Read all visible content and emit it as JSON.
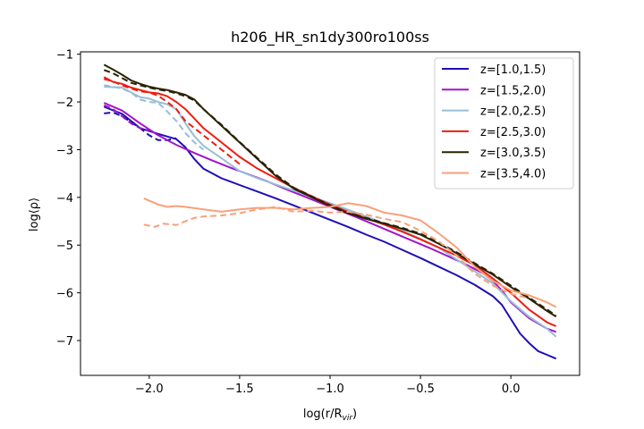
{
  "chart_data": {
    "type": "line",
    "title": "h206_HR_sn1dy300ro100ss",
    "xlabel": "log(r/R",
    "xlabel_sub": "vir",
    "xlabel_close": ")",
    "ylabel": "log⟨ρ⟩",
    "xlim": [
      -2.38,
      0.38
    ],
    "ylim": [
      -7.73,
      -0.95
    ],
    "xticks": [
      -2.0,
      -1.5,
      -1.0,
      -0.5,
      0.0
    ],
    "xtick_labels": [
      "−2.0",
      "−1.5",
      "−1.0",
      "−0.5",
      "0.0"
    ],
    "yticks": [
      -1,
      -2,
      -3,
      -4,
      -5,
      -6,
      -7
    ],
    "ytick_labels": [
      "−1",
      "−2",
      "−3",
      "−4",
      "−5",
      "−6",
      "−7"
    ],
    "grid": false,
    "legend_position": "top-right",
    "series": [
      {
        "name": "z=[1.0,1.5)",
        "color": "#1f0eb3",
        "solid": {
          "x": [
            -2.25,
            -2.15,
            -2.05,
            -1.95,
            -1.85,
            -1.8,
            -1.75,
            -1.7,
            -1.6,
            -1.5,
            -1.4,
            -1.3,
            -1.2,
            -1.1,
            -1.0,
            -0.9,
            -0.8,
            -0.7,
            -0.6,
            -0.5,
            -0.4,
            -0.3,
            -0.2,
            -0.1,
            -0.05,
            0.0,
            0.05,
            0.1,
            0.15,
            0.2,
            0.25
          ],
          "y": [
            -2.1,
            -2.25,
            -2.55,
            -2.67,
            -2.78,
            -2.95,
            -3.2,
            -3.4,
            -3.6,
            -3.74,
            -3.88,
            -4.02,
            -4.17,
            -4.32,
            -4.47,
            -4.62,
            -4.78,
            -4.93,
            -5.1,
            -5.27,
            -5.45,
            -5.63,
            -5.83,
            -6.07,
            -6.25,
            -6.55,
            -6.85,
            -7.05,
            -7.22,
            -7.3,
            -7.38
          ]
        },
        "dashed": {
          "x": [
            -2.25,
            -2.2,
            -2.15,
            -2.05,
            -2.0,
            -1.95,
            -1.9,
            -1.85
          ],
          "y": [
            -2.24,
            -2.22,
            -2.3,
            -2.55,
            -2.7,
            -2.8,
            -2.8,
            -2.76
          ]
        }
      },
      {
        "name": "z=[1.5,2.0)",
        "color": "#a312cc",
        "solid": {
          "x": [
            -2.25,
            -2.15,
            -2.05,
            -1.95,
            -1.85,
            -1.75,
            -1.65,
            -1.55,
            -1.45,
            -1.35,
            -1.25,
            -1.15,
            -1.05,
            -0.95,
            -0.85,
            -0.75,
            -0.65,
            -0.55,
            -0.45,
            -0.35,
            -0.25,
            -0.15,
            -0.1,
            -0.05,
            0.0,
            0.1,
            0.2,
            0.25
          ],
          "y": [
            -2.02,
            -2.18,
            -2.45,
            -2.7,
            -2.9,
            -3.07,
            -3.23,
            -3.38,
            -3.52,
            -3.66,
            -3.82,
            -3.97,
            -4.12,
            -4.27,
            -4.42,
            -4.58,
            -4.74,
            -4.9,
            -5.06,
            -5.23,
            -5.4,
            -5.6,
            -5.75,
            -5.95,
            -6.2,
            -6.53,
            -6.75,
            -6.82
          ]
        },
        "dashed": {
          "x": [
            -2.25,
            -2.2,
            -2.15,
            -2.1,
            -2.05,
            -2.0
          ],
          "y": [
            -2.07,
            -2.15,
            -2.3,
            -2.45,
            -2.55,
            -2.6
          ]
        }
      },
      {
        "name": "z=[2.0,2.5)",
        "color": "#97bed6",
        "solid": {
          "x": [
            -2.25,
            -2.15,
            -2.1,
            -2.05,
            -2.0,
            -1.95,
            -1.9,
            -1.85,
            -1.8,
            -1.75,
            -1.7,
            -1.6,
            -1.5,
            -1.4,
            -1.3,
            -1.2,
            -1.1,
            -1.0,
            -0.9,
            -0.8,
            -0.7,
            -0.6,
            -0.5,
            -0.4,
            -0.3,
            -0.2,
            -0.1,
            0.0,
            0.1,
            0.2,
            0.25
          ],
          "y": [
            -1.68,
            -1.7,
            -1.8,
            -1.9,
            -1.93,
            -2.0,
            -2.05,
            -2.15,
            -2.45,
            -2.72,
            -2.92,
            -3.18,
            -3.45,
            -3.6,
            -3.73,
            -3.86,
            -3.99,
            -4.12,
            -4.26,
            -4.4,
            -4.55,
            -4.7,
            -4.87,
            -5.05,
            -5.3,
            -5.55,
            -5.8,
            -6.18,
            -6.5,
            -6.75,
            -6.92
          ]
        },
        "dashed": {
          "x": [
            -2.25,
            -2.2,
            -2.15,
            -2.1,
            -2.05,
            -2.0,
            -1.95,
            -1.9,
            -1.85,
            -1.8,
            -1.75,
            -1.7
          ],
          "y": [
            -1.65,
            -1.68,
            -1.72,
            -1.8,
            -1.95,
            -2.0,
            -2.02,
            -2.2,
            -2.4,
            -2.65,
            -2.85,
            -3.0
          ]
        }
      },
      {
        "name": "z=[2.5,3.0)",
        "color": "#ee1c10",
        "solid": {
          "x": [
            -2.25,
            -2.2,
            -2.15,
            -2.1,
            -2.05,
            -2.0,
            -1.95,
            -1.9,
            -1.85,
            -1.8,
            -1.75,
            -1.7,
            -1.6,
            -1.5,
            -1.4,
            -1.3,
            -1.2,
            -1.1,
            -1.0,
            -0.9,
            -0.8,
            -0.7,
            -0.6,
            -0.5,
            -0.4,
            -0.3,
            -0.2,
            -0.1,
            0.0,
            0.1,
            0.2,
            0.25
          ],
          "y": [
            -1.48,
            -1.58,
            -1.62,
            -1.7,
            -1.75,
            -1.8,
            -1.82,
            -1.88,
            -2.0,
            -2.15,
            -2.35,
            -2.55,
            -2.85,
            -3.15,
            -3.4,
            -3.6,
            -3.8,
            -3.98,
            -4.15,
            -4.3,
            -4.44,
            -4.57,
            -4.72,
            -4.88,
            -5.05,
            -5.22,
            -5.42,
            -5.7,
            -6.0,
            -6.35,
            -6.62,
            -6.7
          ]
        },
        "dashed": {
          "x": [
            -2.25,
            -2.2,
            -2.15,
            -2.1,
            -2.05,
            -2.0,
            -1.95,
            -1.9,
            -1.85,
            -1.8,
            -1.75,
            -1.7,
            -1.65,
            -1.6,
            -1.55,
            -1.5
          ],
          "y": [
            -1.52,
            -1.57,
            -1.65,
            -1.72,
            -1.78,
            -1.8,
            -1.87,
            -2.0,
            -2.15,
            -2.4,
            -2.55,
            -2.7,
            -2.85,
            -3.0,
            -3.15,
            -3.3
          ]
        }
      },
      {
        "name": "z=[3.0,3.5)",
        "color": "#2a2200",
        "solid": {
          "x": [
            -2.25,
            -2.2,
            -2.15,
            -2.1,
            -2.05,
            -2.0,
            -1.95,
            -1.9,
            -1.85,
            -1.8,
            -1.75,
            -1.7,
            -1.6,
            -1.5,
            -1.4,
            -1.3,
            -1.2,
            -1.1,
            -1.0,
            -0.9,
            -0.8,
            -0.7,
            -0.6,
            -0.5,
            -0.4,
            -0.3,
            -0.2,
            -0.1,
            0.0,
            0.1,
            0.2,
            0.25
          ],
          "y": [
            -1.22,
            -1.32,
            -1.43,
            -1.55,
            -1.62,
            -1.68,
            -1.72,
            -1.75,
            -1.8,
            -1.85,
            -1.95,
            -2.15,
            -2.5,
            -2.85,
            -3.2,
            -3.55,
            -3.82,
            -4.0,
            -4.18,
            -4.33,
            -4.45,
            -4.55,
            -4.66,
            -4.78,
            -4.97,
            -5.17,
            -5.4,
            -5.62,
            -5.88,
            -6.12,
            -6.38,
            -6.5
          ]
        },
        "dashed": {
          "x": [
            -2.25,
            -2.2,
            -2.15,
            -2.1,
            -2.05,
            -2.0,
            -1.95,
            -1.9,
            -1.85,
            -1.8,
            -1.75,
            -1.7,
            -1.6,
            -1.5,
            -1.4,
            -1.3,
            -1.2,
            -1.1,
            -1.0,
            -0.9,
            -0.8,
            -0.7,
            -0.6,
            -0.5,
            -0.4,
            -0.3,
            -0.2,
            -0.1,
            0.0,
            0.1,
            0.2,
            0.25
          ],
          "y": [
            -1.33,
            -1.4,
            -1.5,
            -1.6,
            -1.65,
            -1.7,
            -1.74,
            -1.77,
            -1.82,
            -1.88,
            -1.97,
            -2.15,
            -2.48,
            -2.84,
            -3.18,
            -3.52,
            -3.8,
            -3.98,
            -4.17,
            -4.32,
            -4.43,
            -4.54,
            -4.64,
            -4.76,
            -4.95,
            -5.15,
            -5.38,
            -5.6,
            -5.85,
            -6.1,
            -6.35,
            -6.48
          ]
        }
      },
      {
        "name": "z=[3.5,4.0)",
        "color": "#f9a07a",
        "solid": {
          "x": [
            -2.03,
            -1.95,
            -1.9,
            -1.85,
            -1.8,
            -1.7,
            -1.6,
            -1.5,
            -1.4,
            -1.3,
            -1.2,
            -1.1,
            -1.0,
            -0.9,
            -0.8,
            -0.7,
            -0.6,
            -0.5,
            -0.4,
            -0.3,
            -0.2,
            -0.1,
            0.0,
            0.1,
            0.2,
            0.25
          ],
          "y": [
            -4.02,
            -4.15,
            -4.2,
            -4.18,
            -4.2,
            -4.25,
            -4.3,
            -4.25,
            -4.22,
            -4.22,
            -4.25,
            -4.22,
            -4.2,
            -4.12,
            -4.18,
            -4.32,
            -4.38,
            -4.48,
            -4.75,
            -5.05,
            -5.45,
            -5.75,
            -5.95,
            -6.05,
            -6.2,
            -6.3
          ]
        },
        "dashed": {
          "x": [
            -2.03,
            -1.97,
            -1.92,
            -1.85,
            -1.8,
            -1.75,
            -1.7,
            -1.6,
            -1.5,
            -1.4,
            -1.3,
            -1.2,
            -1.1,
            -1.0,
            -0.9,
            -0.8,
            -0.7,
            -0.6,
            -0.5,
            -0.4,
            -0.3,
            -0.2,
            -0.1,
            0.0,
            0.1
          ],
          "y": [
            -4.57,
            -4.62,
            -4.55,
            -4.58,
            -4.5,
            -4.43,
            -4.4,
            -4.38,
            -4.33,
            -4.25,
            -4.2,
            -4.3,
            -4.28,
            -4.32,
            -4.3,
            -4.36,
            -4.45,
            -4.52,
            -4.7,
            -4.92,
            -5.22,
            -5.6,
            -5.85,
            -6.02,
            -6.12
          ]
        }
      }
    ]
  }
}
